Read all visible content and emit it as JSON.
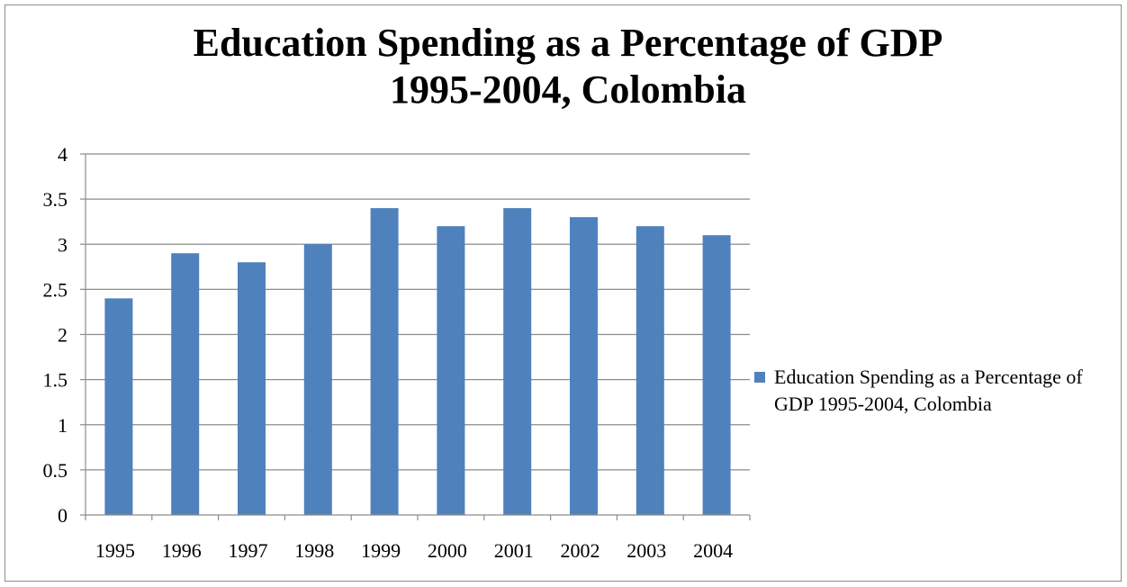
{
  "chart_data": {
    "type": "bar",
    "title_line1": "Education Spending as a Percentage of GDP",
    "title_line2": "1995-2004, Colombia",
    "categories": [
      "1995",
      "1996",
      "1997",
      "1998",
      "1999",
      "2000",
      "2001",
      "2002",
      "2003",
      "2004"
    ],
    "series": [
      {
        "name": "Education Spending as a Percentage of GDP 1995-2004, Colombia",
        "values": [
          2.4,
          2.9,
          2.8,
          3.0,
          3.4,
          3.2,
          3.4,
          3.3,
          3.2,
          3.1
        ],
        "color": "#4f81bd"
      }
    ],
    "y_ticks": [
      "0",
      "0.5",
      "1",
      "1.5",
      "2",
      "2.5",
      "3",
      "3.5",
      "4"
    ],
    "ylim": [
      0,
      4
    ],
    "grid": true,
    "gridline_color": "#8c8c8c",
    "legend_position": "right",
    "xlabel": "",
    "ylabel": ""
  }
}
